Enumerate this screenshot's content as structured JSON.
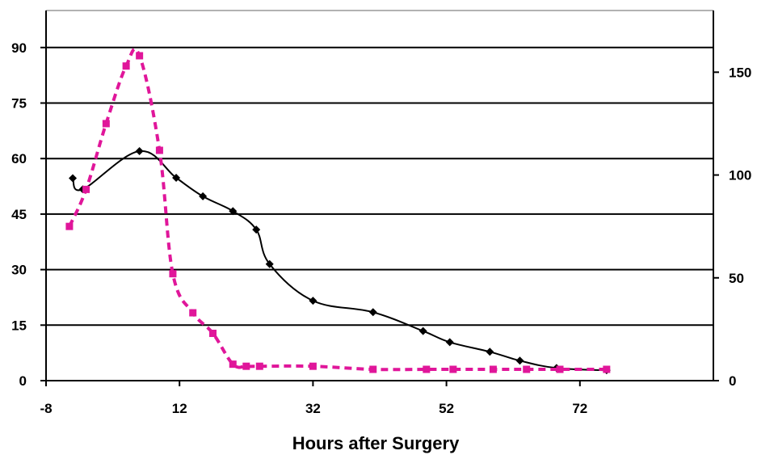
{
  "chart_data": {
    "type": "line",
    "title": "",
    "xlabel": "Hours after Surgery",
    "ylabel": "",
    "ylabel_right": "",
    "xlim": [
      -8,
      92
    ],
    "ylim": [
      0,
      100
    ],
    "ylim_right": [
      0,
      180
    ],
    "x_ticks": [
      -8,
      12,
      32,
      52,
      72
    ],
    "x_tick_labels": [
      "-8",
      "12",
      "32",
      "52",
      "72"
    ],
    "y_ticks": [
      0,
      15,
      30,
      45,
      60,
      75,
      90
    ],
    "y_tick_labels": [
      "0",
      "15",
      "30",
      "45",
      "60",
      "75",
      "90"
    ],
    "y_ticks_right": [
      0,
      50,
      100,
      150
    ],
    "y_tick_labels_right": [
      "0",
      "50",
      "100",
      "150"
    ],
    "grid": true,
    "legend": "none",
    "series": [
      {
        "axis": "left",
        "color": "#000000",
        "style": "solid",
        "marker": "diamond",
        "x": [
          -4,
          -2.5,
          6,
          11.5,
          15.5,
          20,
          23.5,
          25.5,
          32,
          41,
          48.5,
          52.5,
          58.5,
          63,
          68.5,
          76
        ],
        "y": [
          54.7,
          51.7,
          62,
          54.8,
          49.8,
          45.8,
          40.8,
          31.5,
          21.6,
          18.5,
          13.4,
          10.4,
          7.8,
          5.4,
          3.4,
          2.8
        ]
      },
      {
        "axis": "right",
        "color": "#e0169a",
        "style": "dashed",
        "marker": "square",
        "x": [
          -4.5,
          -2,
          1,
          4,
          6,
          9,
          11,
          14,
          17,
          20,
          22,
          24,
          32,
          41,
          49,
          53,
          59,
          64,
          69,
          76
        ],
        "y": [
          75,
          93,
          125,
          153,
          158,
          112,
          52,
          33,
          23,
          8,
          7,
          7,
          7,
          5.5,
          5.5,
          5.5,
          5.5,
          5.5,
          5.5,
          5.5
        ]
      }
    ]
  }
}
